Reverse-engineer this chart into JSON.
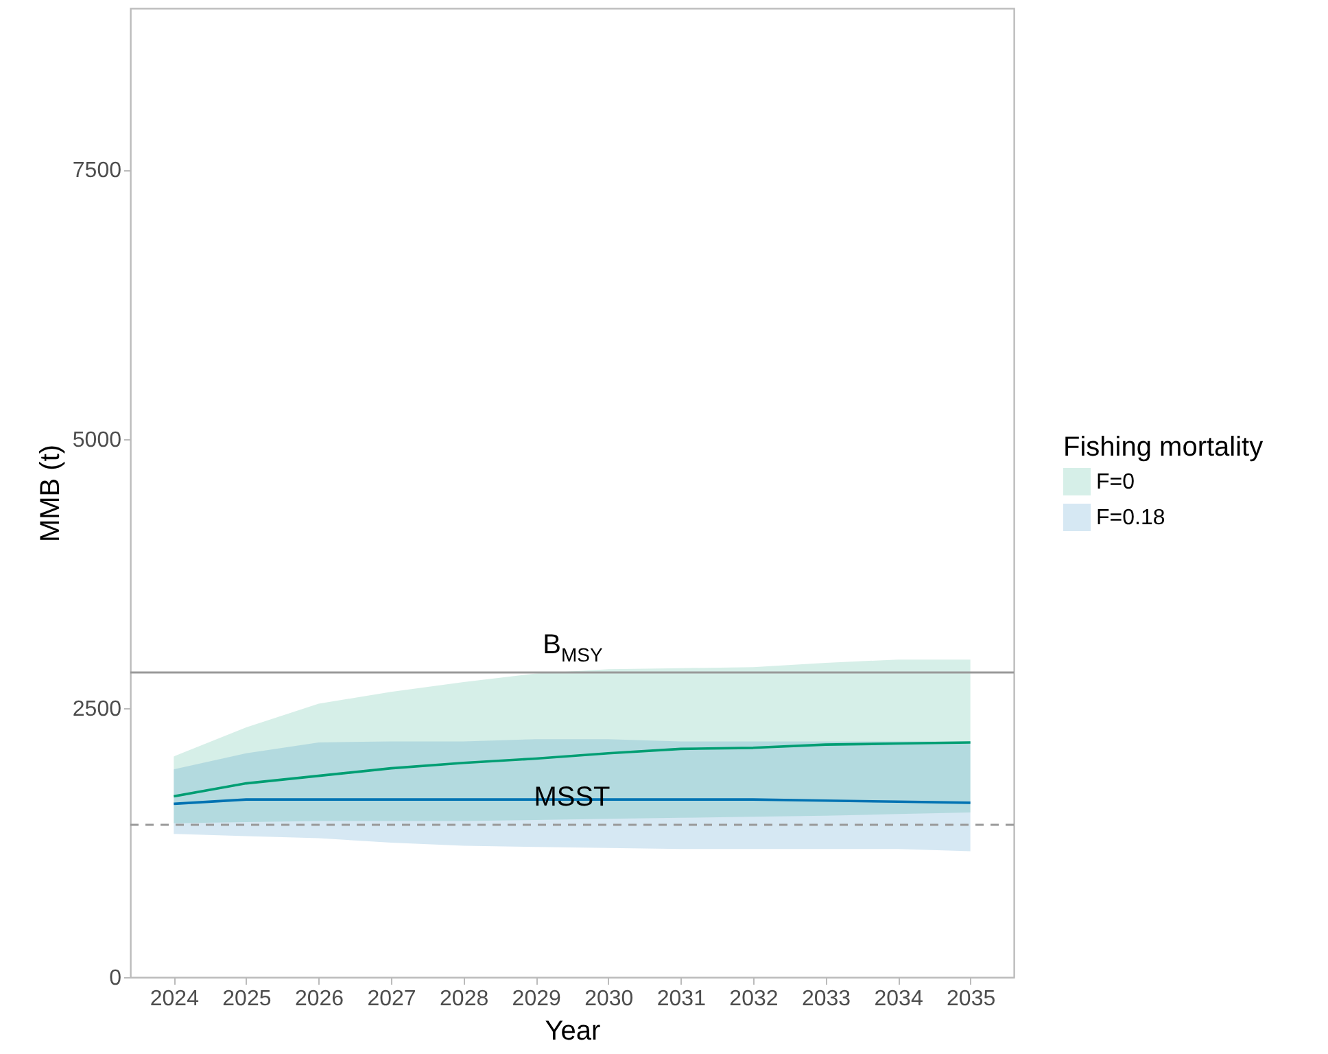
{
  "chart_data": {
    "type": "line",
    "xlabel": "Year",
    "ylabel": "MMB (t)",
    "legend_title": "Fishing mortality",
    "legend": "right",
    "grid": false,
    "x": [
      2024,
      2025,
      2026,
      2027,
      2028,
      2029,
      2030,
      2031,
      2032,
      2033,
      2034,
      2035
    ],
    "xlim": [
      2023.4,
      2035.6
    ],
    "xticks": [
      2024,
      2025,
      2026,
      2027,
      2028,
      2029,
      2030,
      2031,
      2032,
      2033,
      2034,
      2035
    ],
    "ylim": [
      0,
      9000
    ],
    "yticks": [
      0,
      2500,
      5000,
      7500
    ],
    "series": [
      {
        "name": "F=0",
        "color": "#009e73",
        "values": [
          1680,
          1800,
          1870,
          1940,
          1990,
          2030,
          2080,
          2120,
          2130,
          2160,
          2170,
          2180
        ],
        "lower": [
          1430,
          1440,
          1450,
          1450,
          1450,
          1460,
          1470,
          1480,
          1490,
          1500,
          1515,
          1530
        ],
        "upper": [
          2050,
          2320,
          2540,
          2650,
          2740,
          2820,
          2860,
          2870,
          2880,
          2920,
          2950,
          2950
        ]
      },
      {
        "name": "F=0.18",
        "color": "#0072b2",
        "values": [
          1610,
          1650,
          1650,
          1650,
          1650,
          1650,
          1650,
          1650,
          1650,
          1640,
          1630,
          1620
        ],
        "lower": [
          1330,
          1310,
          1290,
          1250,
          1220,
          1210,
          1200,
          1190,
          1190,
          1190,
          1190,
          1170
        ],
        "upper": [
          1930,
          2080,
          2180,
          2190,
          2190,
          2210,
          2210,
          2190,
          2190,
          2190,
          2190,
          2190
        ]
      }
    ],
    "ref_lines": [
      {
        "axis": "y",
        "value": 2830,
        "label": "B$_{MSY}$",
        "color": "#999999",
        "line_style": "solid"
      },
      {
        "axis": "y",
        "value": 1415,
        "label": "MSST",
        "color": "#999999",
        "line_style": "dashed"
      }
    ]
  }
}
